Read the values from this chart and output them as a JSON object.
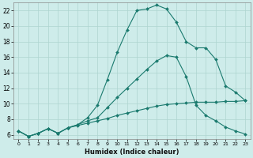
{
  "xlabel": "Humidex (Indice chaleur)",
  "bg_color": "#ceecea",
  "grid_color": "#aed4d0",
  "line_color": "#1a7a6e",
  "xlim": [
    -0.5,
    23.5
  ],
  "ylim": [
    5.5,
    23
  ],
  "yticks": [
    6,
    8,
    10,
    12,
    14,
    16,
    18,
    20,
    22
  ],
  "xticks": [
    0,
    1,
    2,
    3,
    4,
    5,
    6,
    7,
    8,
    9,
    10,
    11,
    12,
    13,
    14,
    15,
    16,
    17,
    18,
    19,
    20,
    21,
    22,
    23
  ],
  "line1_x": [
    0,
    1,
    2,
    3,
    4,
    5,
    6,
    7,
    8,
    9,
    10,
    11,
    12,
    13,
    14,
    15,
    16,
    17,
    18,
    19,
    20,
    21,
    22,
    23
  ],
  "line1_y": [
    6.5,
    5.8,
    6.2,
    6.8,
    6.2,
    6.9,
    7.3,
    8.2,
    9.8,
    13.1,
    16.6,
    19.5,
    22.0,
    22.2,
    22.7,
    22.2,
    20.5,
    18.0,
    17.2,
    17.2,
    15.7,
    12.3,
    11.5,
    10.4
  ],
  "line2_x": [
    0,
    1,
    2,
    3,
    4,
    5,
    6,
    7,
    8,
    9,
    10,
    11,
    12,
    13,
    14,
    15,
    16,
    17,
    18,
    19,
    20,
    21,
    22,
    23
  ],
  "line2_y": [
    6.5,
    5.8,
    6.2,
    6.8,
    6.2,
    6.9,
    7.3,
    7.8,
    8.2,
    9.5,
    10.8,
    12.0,
    13.2,
    14.4,
    15.5,
    16.2,
    16.0,
    13.5,
    9.8,
    8.5,
    7.8,
    7.0,
    6.5,
    6.1
  ],
  "line3_x": [
    0,
    1,
    2,
    3,
    4,
    5,
    6,
    7,
    8,
    9,
    10,
    11,
    12,
    13,
    14,
    15,
    16,
    17,
    18,
    19,
    20,
    21,
    22,
    23
  ],
  "line3_y": [
    6.5,
    5.8,
    6.2,
    6.8,
    6.2,
    6.9,
    7.2,
    7.5,
    7.8,
    8.1,
    8.5,
    8.8,
    9.1,
    9.4,
    9.7,
    9.9,
    10.0,
    10.1,
    10.2,
    10.2,
    10.2,
    10.3,
    10.3,
    10.4
  ]
}
